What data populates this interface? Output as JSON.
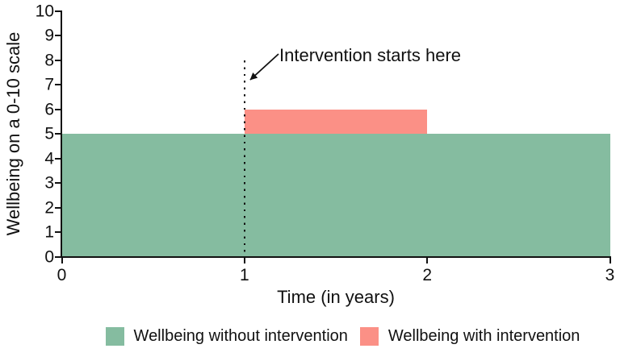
{
  "chart_data": {
    "type": "area",
    "title": "",
    "xlabel": "Time (in years)",
    "ylabel": "Wellbeing on a 0-10 scale",
    "xlim": [
      0,
      3
    ],
    "ylim": [
      0,
      10
    ],
    "x_ticks": [
      0,
      1,
      2,
      3
    ],
    "y_ticks": [
      0,
      1,
      2,
      3,
      4,
      5,
      6,
      7,
      8,
      9,
      10
    ],
    "grid": false,
    "legend_position": "bottom",
    "colors": {
      "without_intervention": "#85bca0",
      "with_intervention": "#fb9086",
      "ink": "#111111"
    },
    "series": [
      {
        "id": "without-intervention",
        "name": "Wellbeing without intervention",
        "color": "#85bca0",
        "x_range": [
          0,
          3
        ],
        "y_range": [
          0,
          5
        ]
      },
      {
        "id": "with-intervention",
        "name": "Wellbeing with intervention",
        "color": "#fb9086",
        "x_range": [
          1,
          2
        ],
        "y_range": [
          5,
          6
        ]
      }
    ],
    "vline": {
      "x": 1,
      "y_top": 8,
      "style": "dotted"
    },
    "annotation": {
      "text": "Intervention starts here",
      "arrow_target": {
        "x": 1,
        "y": 7
      }
    },
    "legend": [
      {
        "label": "Wellbeing without intervention",
        "color": "#85bca0"
      },
      {
        "label": "Wellbeing with intervention",
        "color": "#fb9086"
      }
    ]
  }
}
